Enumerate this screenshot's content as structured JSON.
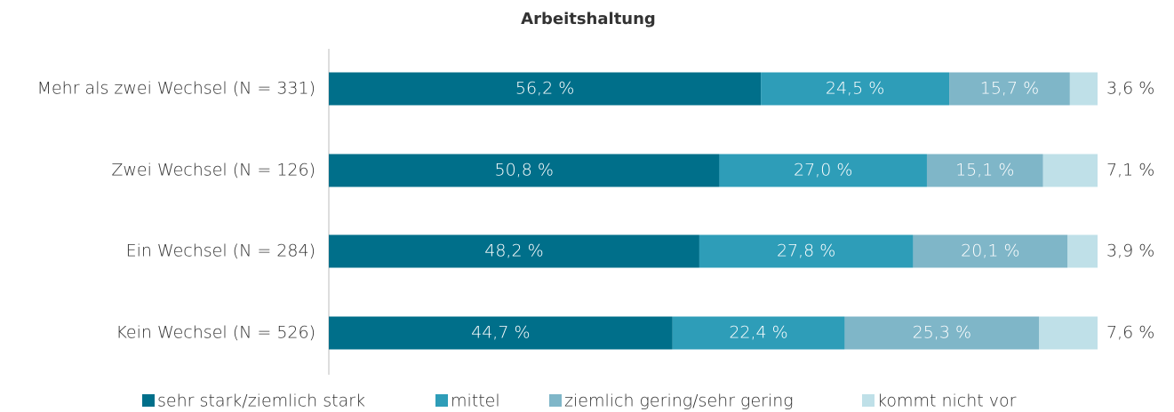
{
  "chart_data": {
    "type": "stacked_barh",
    "title": "Arbeitshaltung",
    "categories": [
      "Mehr als zwei Wechsel (N = 331)",
      "Zwei Wechsel (N = 126)",
      "Ein Wechsel (N = 284)",
      "Kein Wechsel (N = 526)"
    ],
    "series": [
      {
        "name": "sehr stark/ziemlich stark",
        "color": "#006f8a",
        "values": [
          56.2,
          50.8,
          48.2,
          44.7
        ],
        "value_labels": [
          "56,2 %",
          "50,8 %",
          "48,2 %",
          "44,7 %"
        ]
      },
      {
        "name": "mittel",
        "color": "#2e9db8",
        "values": [
          24.5,
          27.0,
          27.8,
          22.4
        ],
        "value_labels": [
          "24,5 %",
          "27,0 %",
          "27,8 %",
          "22,4 %"
        ]
      },
      {
        "name": "ziemlich gering/sehr gering",
        "color": "#7fb6c8",
        "values": [
          15.7,
          15.1,
          20.1,
          25.3
        ],
        "value_labels": [
          "15,7 %",
          "15,1 %",
          "20,1 %",
          "25,3 %"
        ]
      },
      {
        "name": "kommt nicht vor",
        "color": "#bfe0e8",
        "values": [
          3.6,
          7.1,
          3.9,
          7.6
        ],
        "value_labels": [
          "3,6 %",
          "7,1 %",
          "3,9 %",
          "7,6 %"
        ]
      }
    ],
    "xlim": [
      0,
      100
    ],
    "legend": "bottom"
  }
}
